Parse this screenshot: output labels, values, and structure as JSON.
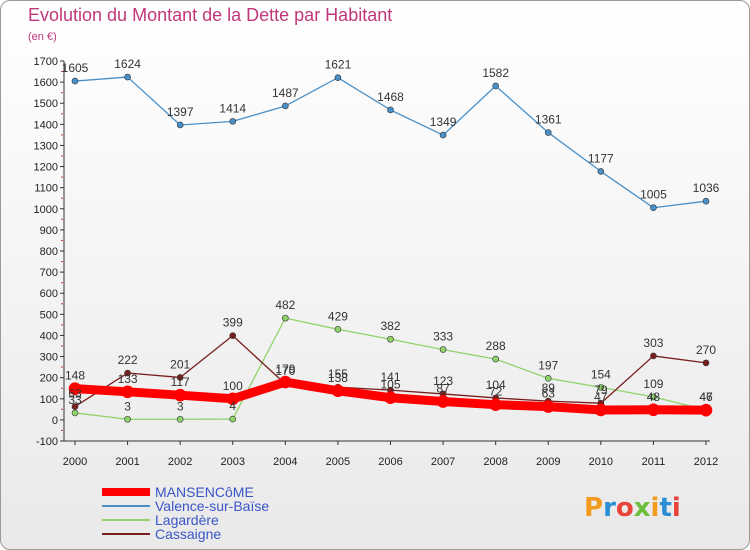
{
  "chart_data": {
    "type": "line",
    "title": "Evolution du Montant de la Dette par Habitant",
    "subtitle": "(en €)",
    "x": [
      "2000",
      "2001",
      "2002",
      "2003",
      "2004",
      "2005",
      "2006",
      "2007",
      "2008",
      "2009",
      "2010",
      "2011",
      "2012"
    ],
    "yticks": [
      -100,
      0,
      100,
      200,
      300,
      400,
      500,
      600,
      700,
      800,
      900,
      1000,
      1100,
      1200,
      1300,
      1400,
      1500,
      1600,
      1700
    ],
    "ylim": [
      -100,
      1700
    ],
    "grid": false,
    "legend_position": "bottom-left",
    "series": [
      {
        "name": "MANSENCôME",
        "color": "#ff0000",
        "width": 9,
        "values": [
          148,
          133,
          117,
          100,
          179,
          138,
          105,
          87,
          72,
          63,
          47,
          48,
          46
        ],
        "labels": [
          "148",
          "133",
          "117",
          "100",
          "179",
          "138",
          "105",
          "87",
          "72",
          "63",
          "47",
          "48",
          "46"
        ]
      },
      {
        "name": "Valence-sur-Baïse",
        "color": "#4a90c8",
        "width": 1.3,
        "values": [
          1605,
          1624,
          1397,
          1414,
          1487,
          1621,
          1468,
          1349,
          1582,
          1361,
          1177,
          1005,
          1036
        ],
        "labels": [
          "1605",
          "1624",
          "1397",
          "1414",
          "1487",
          "1621",
          "1468",
          "1349",
          "1582",
          "1361",
          "1177",
          "1005",
          "1036"
        ]
      },
      {
        "name": "Lagardère",
        "color": "#8fd36a",
        "width": 1.3,
        "values": [
          33,
          3,
          3,
          4,
          482,
          429,
          382,
          333,
          288,
          197,
          154,
          109,
          47
        ],
        "labels": [
          "33",
          "3",
          "3",
          "4",
          "482",
          "429",
          "382",
          "333",
          "288",
          "197",
          "154",
          "109",
          "47"
        ]
      },
      {
        "name": "Cassaigne",
        "color": "#7a1e1e",
        "width": 1.3,
        "values": [
          63,
          222,
          201,
          399,
          170,
          155,
          141,
          123,
          104,
          89,
          79,
          303,
          270
        ],
        "labels": [
          "63",
          "222",
          "201",
          "399",
          "170",
          "155",
          "141",
          "123",
          "104",
          "89",
          "79",
          "303",
          "270"
        ]
      }
    ]
  },
  "brand": {
    "text": "Proxiti",
    "letter_colors": [
      "#f29b1f",
      "#2c8fd6",
      "#e8443a",
      "#6bbf3a",
      "#f29b1f",
      "#2c8fd6",
      "#e8443a"
    ]
  }
}
